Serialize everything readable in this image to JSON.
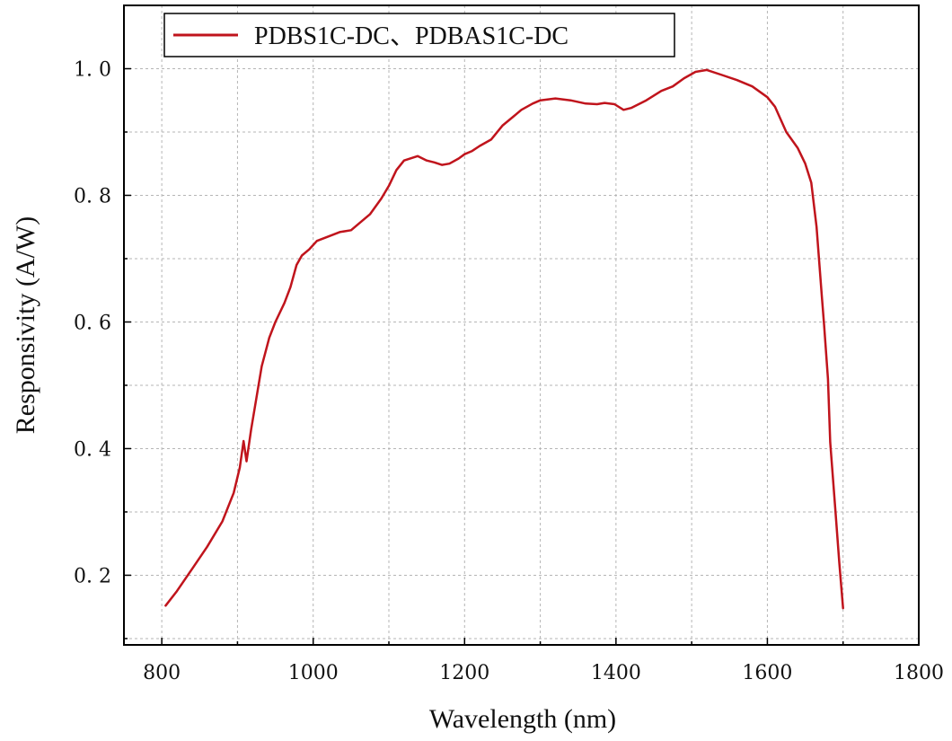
{
  "chart_data": {
    "type": "line",
    "xlabel": "Wavelength (nm)",
    "ylabel": "Responsivity (A/W)",
    "xlim": [
      750,
      1800
    ],
    "ylim": [
      0.09,
      1.1
    ],
    "x_ticks": [
      800,
      1000,
      1200,
      1400,
      1600,
      1800
    ],
    "x_tick_labels": [
      "800",
      "1000",
      "1200",
      "1400",
      "1600",
      "1800"
    ],
    "y_ticks": [
      0.2,
      0.4,
      0.6,
      0.8,
      1.0
    ],
    "y_tick_labels": [
      "0. 2",
      "0. 4",
      "0. 6",
      "0. 8",
      "1. 0"
    ],
    "grid": true,
    "legend_position": "top-left",
    "series": [
      {
        "name": "PDBS1C-DC、PDBAS1C-DC",
        "color": "#c0141c",
        "points": [
          [
            805,
            0.152
          ],
          [
            820,
            0.175
          ],
          [
            840,
            0.21
          ],
          [
            860,
            0.245
          ],
          [
            880,
            0.285
          ],
          [
            895,
            0.33
          ],
          [
            903,
            0.37
          ],
          [
            908,
            0.412
          ],
          [
            912,
            0.38
          ],
          [
            918,
            0.43
          ],
          [
            925,
            0.48
          ],
          [
            932,
            0.53
          ],
          [
            942,
            0.575
          ],
          [
            950,
            0.6
          ],
          [
            962,
            0.63
          ],
          [
            970,
            0.655
          ],
          [
            978,
            0.69
          ],
          [
            985,
            0.705
          ],
          [
            995,
            0.715
          ],
          [
            1005,
            0.728
          ],
          [
            1020,
            0.735
          ],
          [
            1035,
            0.742
          ],
          [
            1050,
            0.745
          ],
          [
            1060,
            0.755
          ],
          [
            1075,
            0.77
          ],
          [
            1090,
            0.795
          ],
          [
            1100,
            0.815
          ],
          [
            1110,
            0.84
          ],
          [
            1120,
            0.855
          ],
          [
            1138,
            0.862
          ],
          [
            1150,
            0.855
          ],
          [
            1160,
            0.852
          ],
          [
            1170,
            0.848
          ],
          [
            1180,
            0.85
          ],
          [
            1192,
            0.858
          ],
          [
            1200,
            0.865
          ],
          [
            1210,
            0.87
          ],
          [
            1220,
            0.878
          ],
          [
            1235,
            0.888
          ],
          [
            1250,
            0.91
          ],
          [
            1265,
            0.925
          ],
          [
            1275,
            0.935
          ],
          [
            1290,
            0.945
          ],
          [
            1300,
            0.95
          ],
          [
            1320,
            0.953
          ],
          [
            1340,
            0.95
          ],
          [
            1360,
            0.945
          ],
          [
            1375,
            0.944
          ],
          [
            1385,
            0.946
          ],
          [
            1398,
            0.944
          ],
          [
            1410,
            0.935
          ],
          [
            1420,
            0.938
          ],
          [
            1440,
            0.95
          ],
          [
            1460,
            0.965
          ],
          [
            1475,
            0.972
          ],
          [
            1490,
            0.985
          ],
          [
            1505,
            0.995
          ],
          [
            1520,
            0.998
          ],
          [
            1540,
            0.99
          ],
          [
            1560,
            0.982
          ],
          [
            1580,
            0.972
          ],
          [
            1600,
            0.955
          ],
          [
            1610,
            0.94
          ],
          [
            1625,
            0.9
          ],
          [
            1640,
            0.875
          ],
          [
            1650,
            0.85
          ],
          [
            1658,
            0.82
          ],
          [
            1665,
            0.75
          ],
          [
            1672,
            0.64
          ],
          [
            1675,
            0.595
          ],
          [
            1680,
            0.51
          ],
          [
            1683,
            0.41
          ],
          [
            1690,
            0.3
          ],
          [
            1695,
            0.22
          ],
          [
            1700,
            0.148
          ]
        ]
      }
    ]
  }
}
